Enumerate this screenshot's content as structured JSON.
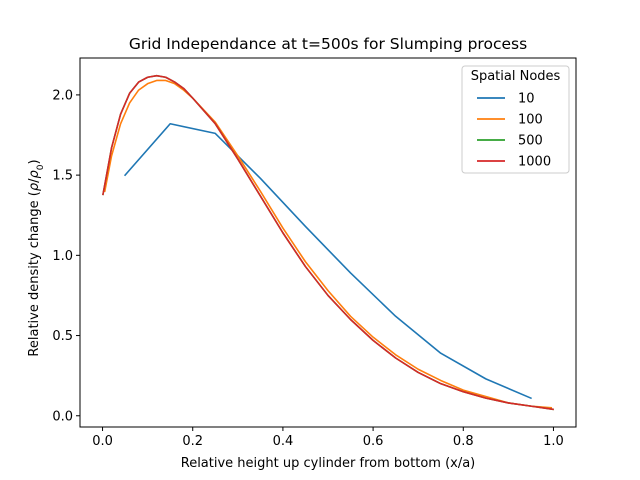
{
  "chart_data": {
    "type": "line",
    "title": "Grid Independance at t=500s for Slumping process",
    "xlabel": "Relative height up cylinder from bottom (x/a)",
    "ylabel_prefix": "Relative density change (",
    "ylabel_rho": "ρ",
    "ylabel_slash": "/",
    "ylabel_rho0": "ρ",
    "ylabel_sub": "0",
    "ylabel_suffix": ")",
    "xlim": [
      -0.05,
      1.05
    ],
    "ylim": [
      -0.07,
      2.23
    ],
    "xticks": [
      0.0,
      0.2,
      0.4,
      0.6,
      0.8,
      1.0
    ],
    "xtick_labels": [
      "0.0",
      "0.2",
      "0.4",
      "0.6",
      "0.8",
      "1.0"
    ],
    "yticks": [
      0.0,
      0.5,
      1.0,
      1.5,
      2.0
    ],
    "ytick_labels": [
      "0.0",
      "0.5",
      "1.0",
      "1.5",
      "2.0"
    ],
    "grid": false,
    "legend": {
      "title": "Spatial Nodes",
      "placement": "top-right"
    },
    "series": [
      {
        "name": "10",
        "color": "#1f77b4",
        "x": [
          0.05,
          0.15,
          0.25,
          0.35,
          0.45,
          0.55,
          0.65,
          0.75,
          0.85,
          0.95
        ],
        "y": [
          1.5,
          1.82,
          1.76,
          1.48,
          1.18,
          0.89,
          0.62,
          0.39,
          0.23,
          0.11
        ]
      },
      {
        "name": "100",
        "color": "#ff7f0e",
        "x": [
          0.005,
          0.02,
          0.04,
          0.06,
          0.08,
          0.1,
          0.12,
          0.14,
          0.16,
          0.18,
          0.2,
          0.25,
          0.3,
          0.35,
          0.4,
          0.45,
          0.5,
          0.55,
          0.6,
          0.65,
          0.7,
          0.75,
          0.8,
          0.85,
          0.9,
          0.95,
          0.995
        ],
        "y": [
          1.4,
          1.62,
          1.82,
          1.95,
          2.03,
          2.07,
          2.09,
          2.09,
          2.07,
          2.03,
          1.98,
          1.83,
          1.62,
          1.4,
          1.17,
          0.96,
          0.78,
          0.62,
          0.49,
          0.38,
          0.29,
          0.22,
          0.16,
          0.12,
          0.08,
          0.06,
          0.05
        ]
      },
      {
        "name": "500",
        "color": "#2ca02c",
        "x": [
          0.001,
          0.02,
          0.04,
          0.06,
          0.08,
          0.1,
          0.12,
          0.14,
          0.16,
          0.18,
          0.2,
          0.25,
          0.3,
          0.35,
          0.4,
          0.45,
          0.5,
          0.55,
          0.6,
          0.65,
          0.7,
          0.75,
          0.8,
          0.85,
          0.9,
          0.95,
          0.999
        ],
        "y": [
          1.38,
          1.67,
          1.88,
          2.01,
          2.08,
          2.11,
          2.12,
          2.11,
          2.08,
          2.04,
          1.98,
          1.82,
          1.6,
          1.37,
          1.14,
          0.93,
          0.75,
          0.6,
          0.47,
          0.36,
          0.27,
          0.2,
          0.15,
          0.11,
          0.08,
          0.06,
          0.04
        ]
      },
      {
        "name": "1000",
        "color": "#d62728",
        "x": [
          0.001,
          0.02,
          0.04,
          0.06,
          0.08,
          0.1,
          0.12,
          0.14,
          0.16,
          0.18,
          0.2,
          0.25,
          0.3,
          0.35,
          0.4,
          0.45,
          0.5,
          0.55,
          0.6,
          0.65,
          0.7,
          0.75,
          0.8,
          0.85,
          0.9,
          0.95,
          0.999
        ],
        "y": [
          1.38,
          1.67,
          1.88,
          2.01,
          2.08,
          2.11,
          2.12,
          2.11,
          2.08,
          2.04,
          1.98,
          1.82,
          1.6,
          1.37,
          1.14,
          0.93,
          0.75,
          0.6,
          0.47,
          0.36,
          0.27,
          0.2,
          0.15,
          0.11,
          0.08,
          0.06,
          0.04
        ]
      }
    ]
  }
}
